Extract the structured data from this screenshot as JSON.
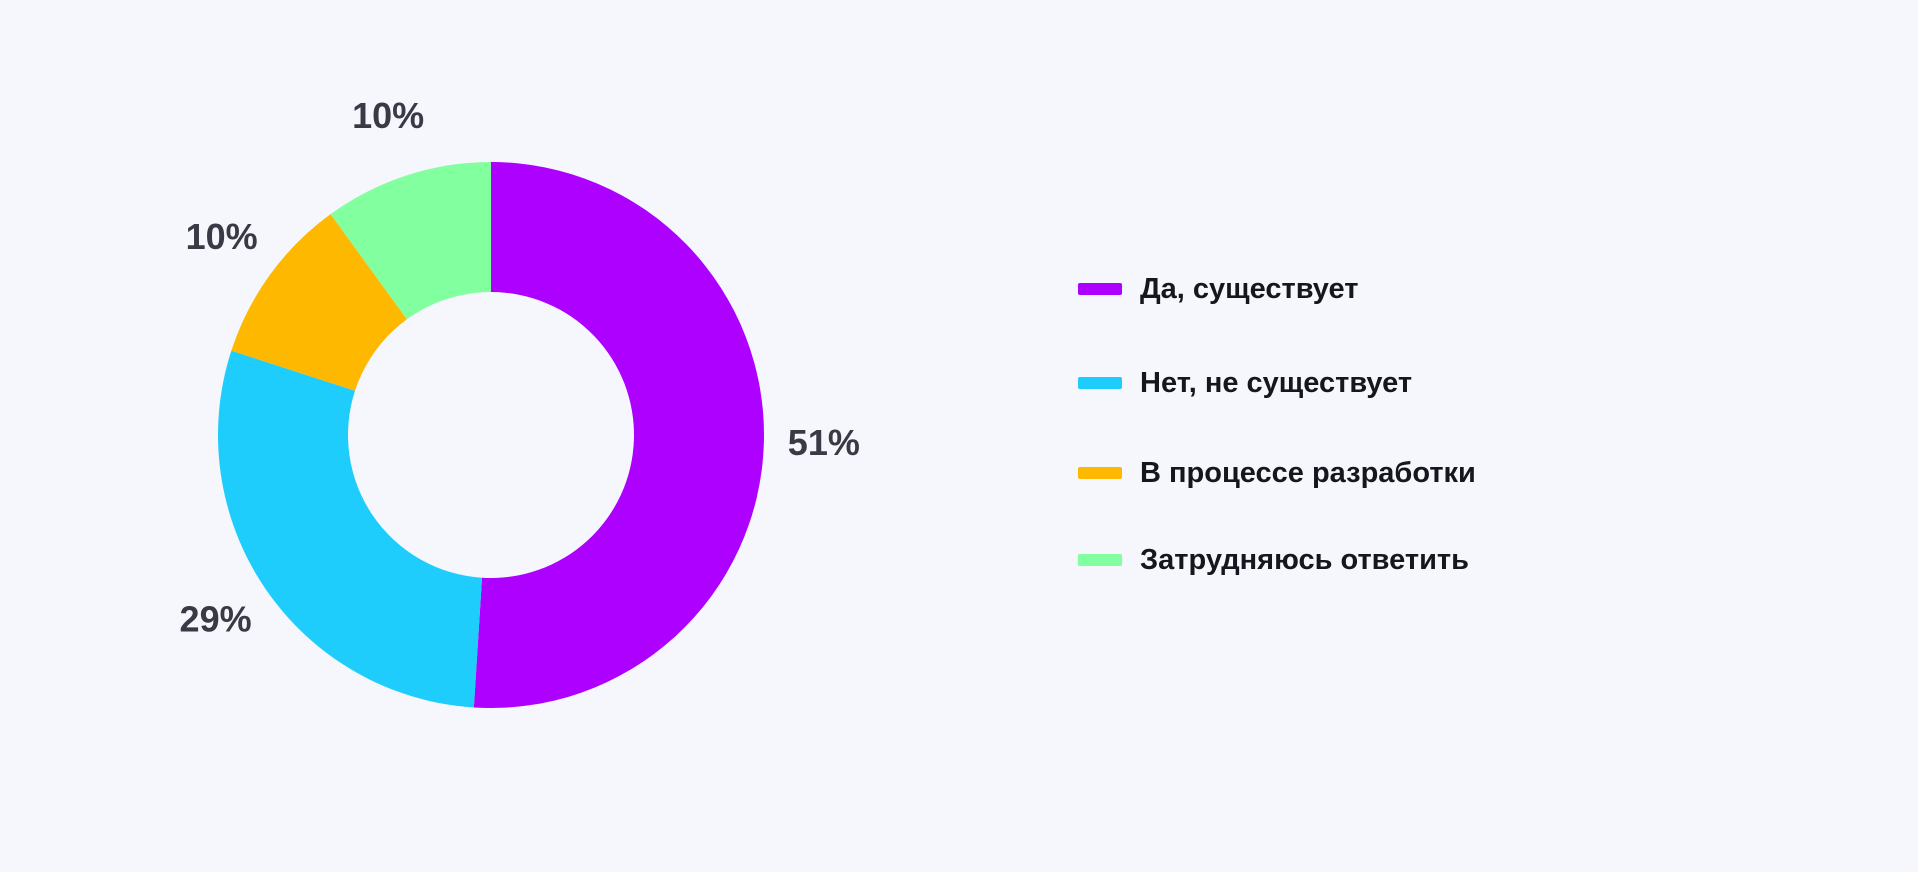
{
  "chart_data": {
    "type": "pie",
    "donut": true,
    "categories": [
      "Да, существует",
      "Нет, не существует",
      "В процессе разработки",
      "Затрудняюсь ответить"
    ],
    "values": [
      51,
      29,
      10,
      10
    ],
    "value_labels": [
      "51%",
      "29%",
      "10%",
      "10%"
    ],
    "colors": [
      "#ad00ff",
      "#1fcdfd",
      "#ffb800",
      "#82ff9e"
    ],
    "legend_position": "right",
    "title": ""
  }
}
